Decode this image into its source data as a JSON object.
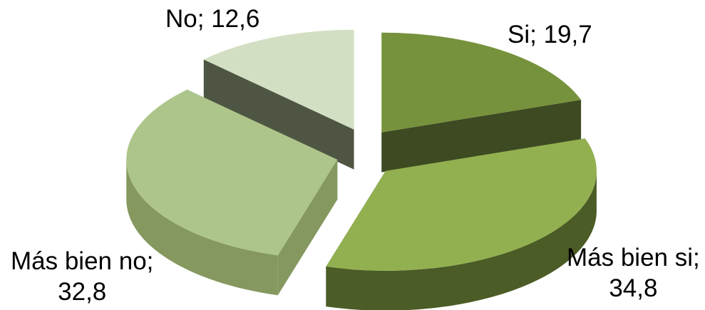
{
  "chart_data": {
    "type": "pie",
    "style": "3d-exploded",
    "title": "",
    "slices": [
      {
        "label": "Si",
        "value": 19.7,
        "text_line1": "Si; 19,7",
        "text_line2": "",
        "color": "#76923C",
        "side_color": "#3E4A22"
      },
      {
        "label": "Más bien si",
        "value": 34.8,
        "text_line1": "Más bien si;",
        "text_line2": "34,8",
        "color": "#92B050",
        "side_color": "#4B5C26"
      },
      {
        "label": "Más bien no",
        "value": 32.8,
        "text_line1": "Más bien no;",
        "text_line2": "32,8",
        "color": "#ADC58A",
        "side_color": "#85985F"
      },
      {
        "label": "No",
        "value": 12.6,
        "text_line1": "No; 12,6",
        "text_line2": "",
        "color": "#D3DFC2",
        "side_color": "#4F5543"
      }
    ]
  }
}
